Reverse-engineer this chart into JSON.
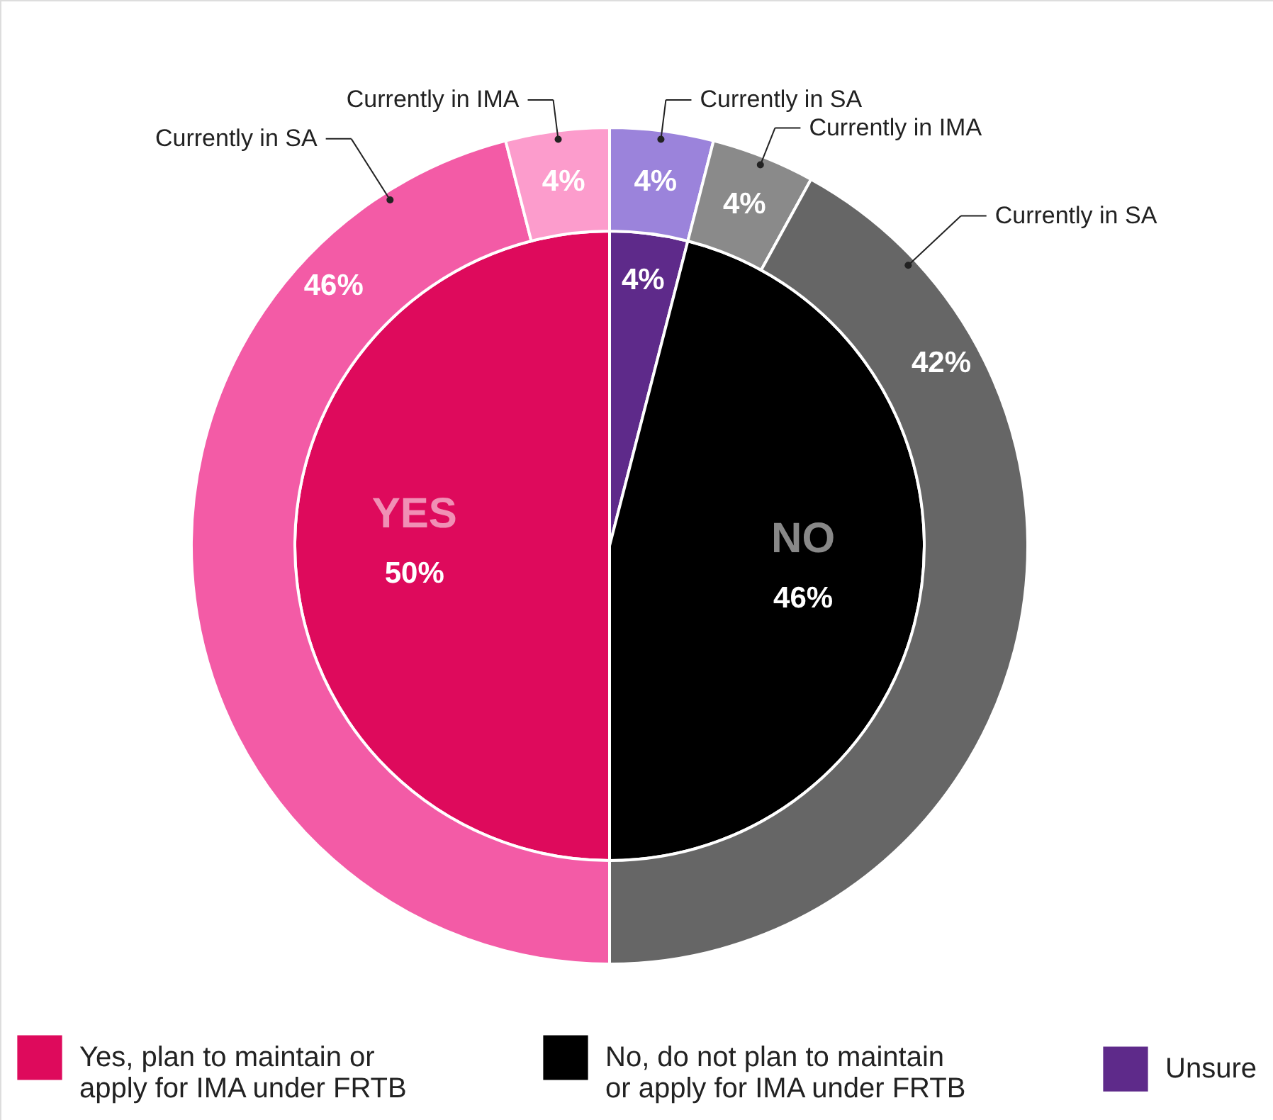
{
  "chart_data": [
    {
      "type": "pie",
      "legend": "bottom",
      "categories": [
        "Unsure",
        "No, do not plan to maintain or apply for IMA under FRTB",
        "Yes, plan to maintain or apply for IMA under FRTB"
      ],
      "values": [
        4,
        46,
        50
      ],
      "colors": [
        "#5e2a8a",
        "#000000",
        "#de0a5c"
      ],
      "value_labels": [
        "4%",
        "46%",
        "50%"
      ],
      "annotations": [
        {
          "text": "NO",
          "x": "No, do not plan to maintain or apply for IMA under FRTB"
        },
        {
          "text": "YES",
          "x": "Yes, plan to maintain or apply for IMA under FRTB"
        }
      ]
    },
    {
      "type": "donut",
      "categories": [
        "Currently in SA",
        "Currently in IMA",
        "Currently in SA",
        "Currently in SA",
        "Currently in IMA"
      ],
      "values": [
        4,
        4,
        42,
        46,
        4
      ],
      "colors": [
        "#9b83db",
        "#8a8a8a",
        "#666666",
        "#f35ba6",
        "#fc9ccc"
      ],
      "value_labels": [
        "4%",
        "4%",
        "42%",
        "46%",
        "4%"
      ]
    }
  ]
}
